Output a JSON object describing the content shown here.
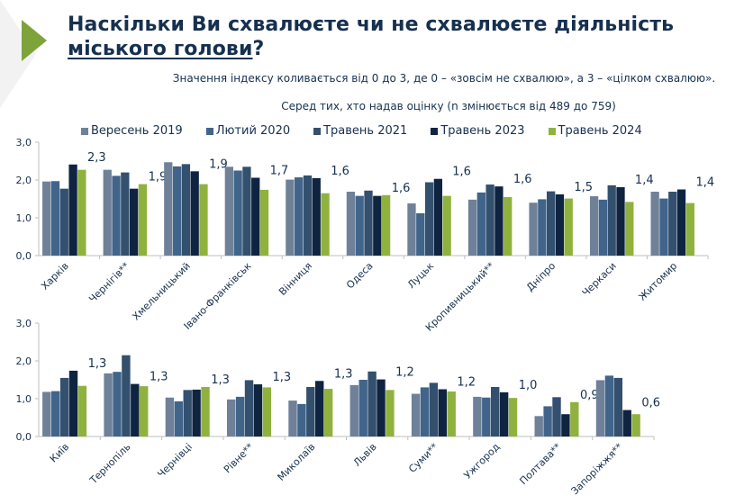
{
  "header": {
    "title_line1": "Наскільки Ви схвалюєте чи не схвалюєте діяльність",
    "title_line2": "міського голови",
    "title_qmark": "?",
    "subtitle": "Значення індексу коливається від 0 до 3, де 0 – «зовсім не схвалюю», а 3 – «цілком схвалюю».",
    "sample_note": "Серед тих, хто надав оцінку  (n змінюється від 489 до 759)"
  },
  "legend": [
    {
      "label": "Вересень 2019",
      "color": "#6f8199"
    },
    {
      "label": "Лютий 2020",
      "color": "#41648b"
    },
    {
      "label": "Травень 2021",
      "color": "#33506e"
    },
    {
      "label": "Травень 2023",
      "color": "#0f2440"
    },
    {
      "label": "Травень 2024",
      "color": "#8fb23e"
    }
  ],
  "chart_data": [
    {
      "type": "bar",
      "title": "",
      "xlabel": "",
      "ylabel": "",
      "ylim": [
        0,
        3
      ],
      "yticks": [
        "0,0",
        "1,0",
        "2,0",
        "3,0"
      ],
      "categories": [
        "Харків",
        "Чернігів**",
        "Хмельницький",
        "Івано-Франківськ",
        "Вінниця",
        "Одеса",
        "Луцьк",
        "Кропивницький**",
        "Дніпро",
        "Черкаси",
        "Житомир"
      ],
      "series": [
        {
          "name": "Вересень 2019",
          "values": [
            1.96,
            2.27,
            2.47,
            2.35,
            2.01,
            1.69,
            1.38,
            1.48,
            1.4,
            1.57,
            1.69
          ]
        },
        {
          "name": "Лютий 2020",
          "values": [
            1.97,
            2.11,
            2.36,
            2.25,
            2.07,
            1.58,
            1.12,
            1.67,
            1.49,
            1.48,
            1.51
          ]
        },
        {
          "name": "Травень 2021",
          "values": [
            1.77,
            2.2,
            2.42,
            2.35,
            2.12,
            1.72,
            1.94,
            1.88,
            1.7,
            1.86,
            1.69
          ]
        },
        {
          "name": "Травень 2023",
          "values": [
            2.41,
            1.77,
            2.23,
            2.06,
            2.05,
            1.58,
            2.03,
            1.83,
            1.62,
            1.81,
            1.75
          ]
        },
        {
          "name": "Травень 2024",
          "values": [
            2.27,
            1.89,
            1.89,
            1.74,
            1.65,
            1.6,
            1.58,
            1.55,
            1.51,
            1.42,
            1.39
          ]
        }
      ],
      "data_labels": [
        "2,3",
        "1,9",
        "1,9",
        "1,7",
        "1,6",
        "1,6",
        "1,6",
        "1,6",
        "1,5",
        "1,4",
        "1,4"
      ],
      "grid": false,
      "legend": "top"
    },
    {
      "type": "bar",
      "title": "",
      "xlabel": "",
      "ylabel": "",
      "ylim": [
        0,
        3
      ],
      "yticks": [
        "0,0",
        "1,0",
        "2,0",
        "3,0"
      ],
      "categories": [
        "Київ",
        "Тернопіль",
        "Чернівці",
        "Рівне**",
        "Миколаїв",
        "Львів",
        "Суми**",
        "Ужгород",
        "Полтава**",
        "Запоріжжя**"
      ],
      "series": [
        {
          "name": "Вересень 2019",
          "values": [
            1.18,
            1.67,
            1.03,
            0.98,
            0.95,
            1.36,
            1.13,
            1.05,
            0.54,
            1.49
          ]
        },
        {
          "name": "Лютий 2020",
          "values": [
            1.2,
            1.71,
            0.93,
            1.05,
            0.86,
            1.5,
            1.3,
            1.03,
            0.8,
            1.61
          ]
        },
        {
          "name": "Травень 2021",
          "values": [
            1.55,
            2.15,
            1.23,
            1.49,
            1.31,
            1.72,
            1.42,
            1.31,
            1.04,
            1.55
          ]
        },
        {
          "name": "Травень 2023",
          "values": [
            1.74,
            1.39,
            1.24,
            1.38,
            1.47,
            1.51,
            1.25,
            1.17,
            0.59,
            0.7
          ]
        },
        {
          "name": "Травень 2024",
          "values": [
            1.34,
            1.33,
            1.31,
            1.3,
            1.26,
            1.23,
            1.19,
            1.02,
            0.91,
            0.59
          ]
        }
      ],
      "data_labels": [
        "1,3",
        "1,3",
        "1,3",
        "1,3",
        "1,3",
        "1,2",
        "1,2",
        "1,0",
        "0,9",
        "0,6"
      ],
      "grid": false,
      "legend": "none"
    }
  ]
}
